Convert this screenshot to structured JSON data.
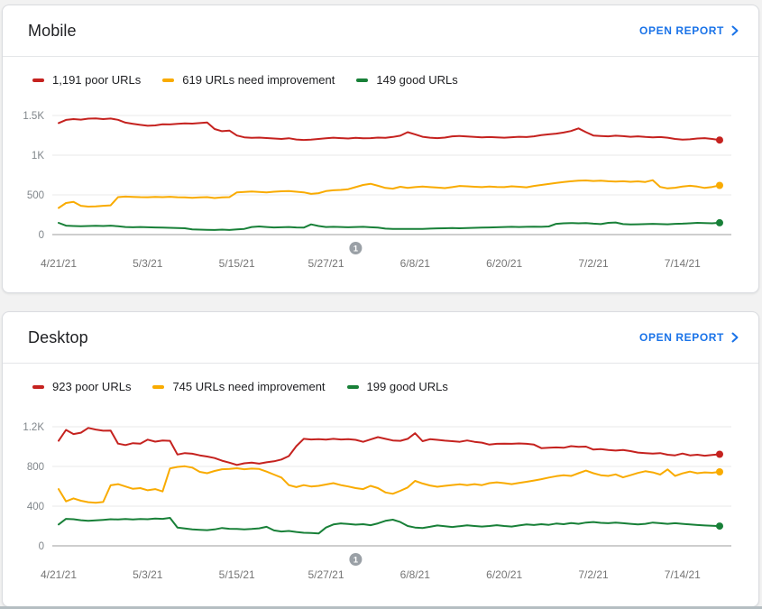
{
  "page": {
    "background": "#f2f2f2",
    "bottom_bar_color": "#b5bec2"
  },
  "colors": {
    "poor": "#c5221f",
    "needs_improvement": "#f9ab00",
    "good": "#188038",
    "link": "#1a73e8",
    "grid": "#e8e8e8",
    "axis_line": "#9e9e9e",
    "tick_label": "#80868b",
    "x_tick_label": "#757575",
    "badge": "#9aa0a6"
  },
  "cards": [
    {
      "title": "Mobile",
      "open_report_label": "OPEN REPORT",
      "legend": [
        {
          "series": "poor",
          "label": "1,191 poor URLs"
        },
        {
          "series": "needs_improvement",
          "label": "619 URLs need improvement"
        },
        {
          "series": "good",
          "label": "149 good URLs"
        }
      ],
      "chart_data": {
        "type": "line",
        "x_tick_labels": [
          "4/21/21",
          "5/3/21",
          "5/15/21",
          "5/27/21",
          "6/8/21",
          "6/20/21",
          "7/2/21",
          "7/14/21"
        ],
        "x_tick_positions": [
          0,
          12,
          24,
          36,
          48,
          60,
          72,
          84
        ],
        "x_range_days": 90,
        "y_ticks": [
          {
            "value": 1500,
            "label": "1.5K"
          },
          {
            "value": 1000,
            "label": "1K"
          },
          {
            "value": 500,
            "label": "500"
          },
          {
            "value": 0,
            "label": "0"
          }
        ],
        "y_unit_per_gridline": 500,
        "ylim": [
          0,
          1750
        ],
        "grid": true,
        "annotation": {
          "label": "1",
          "day": 40
        },
        "series": [
          {
            "name": "poor",
            "color": "#c5221f",
            "values": [
              1405,
              1444,
              1455,
              1448,
              1460,
              1463,
              1454,
              1461,
              1446,
              1410,
              1395,
              1382,
              1370,
              1375,
              1390,
              1388,
              1396,
              1400,
              1398,
              1405,
              1412,
              1330,
              1302,
              1310,
              1248,
              1225,
              1218,
              1222,
              1216,
              1210,
              1205,
              1214,
              1198,
              1192,
              1195,
              1205,
              1212,
              1220,
              1215,
              1210,
              1218,
              1212,
              1215,
              1222,
              1218,
              1230,
              1245,
              1290,
              1262,
              1232,
              1220,
              1215,
              1222,
              1238,
              1242,
              1236,
              1230,
              1224,
              1228,
              1224,
              1220,
              1226,
              1232,
              1228,
              1238,
              1252,
              1262,
              1272,
              1285,
              1305,
              1338,
              1290,
              1248,
              1242,
              1238,
              1246,
              1240,
              1232,
              1238,
              1230,
              1224,
              1228,
              1220,
              1205,
              1195,
              1200,
              1210,
              1215,
              1205,
              1191
            ]
          },
          {
            "name": "needs_improvement",
            "color": "#f9ab00",
            "values": [
              335,
              398,
              412,
              362,
              352,
              356,
              362,
              368,
              472,
              478,
              475,
              472,
              470,
              474,
              472,
              476,
              470,
              468,
              462,
              468,
              472,
              460,
              468,
              472,
              532,
              538,
              542,
              536,
              532,
              540,
              545,
              548,
              540,
              532,
              512,
              522,
              548,
              558,
              562,
              572,
              598,
              625,
              640,
              615,
              588,
              578,
              602,
              588,
              598,
              605,
              598,
              592,
              585,
              598,
              612,
              608,
              602,
              598,
              605,
              600,
              598,
              608,
              602,
              595,
              612,
              625,
              638,
              650,
              662,
              672,
              678,
              682,
              675,
              678,
              672,
              668,
              672,
              665,
              670,
              662,
              685,
              600,
              582,
              590,
              605,
              615,
              605,
              588,
              600,
              619
            ]
          },
          {
            "name": "good",
            "color": "#188038",
            "values": [
              148,
              112,
              108,
              105,
              108,
              110,
              108,
              112,
              105,
              95,
              92,
              95,
              92,
              90,
              88,
              85,
              82,
              80,
              65,
              62,
              60,
              58,
              62,
              58,
              65,
              72,
              95,
              102,
              95,
              90,
              92,
              95,
              90,
              88,
              128,
              108,
              95,
              98,
              95,
              92,
              95,
              98,
              92,
              88,
              75,
              72,
              70,
              72,
              70,
              72,
              75,
              78,
              80,
              82,
              80,
              82,
              85,
              88,
              90,
              92,
              95,
              98,
              95,
              98,
              100,
              98,
              102,
              135,
              142,
              145,
              142,
              145,
              138,
              132,
              148,
              152,
              132,
              128,
              130,
              132,
              135,
              132,
              130,
              135,
              138,
              142,
              148,
              145,
              142,
              149
            ]
          }
        ]
      }
    },
    {
      "title": "Desktop",
      "open_report_label": "OPEN REPORT",
      "legend": [
        {
          "series": "poor",
          "label": "923 poor URLs"
        },
        {
          "series": "needs_improvement",
          "label": "745 URLs need improvement"
        },
        {
          "series": "good",
          "label": "199 good URLs"
        }
      ],
      "chart_data": {
        "type": "line",
        "x_tick_labels": [
          "4/21/21",
          "5/3/21",
          "5/15/21",
          "5/27/21",
          "6/8/21",
          "6/20/21",
          "7/2/21",
          "7/14/21"
        ],
        "x_tick_positions": [
          0,
          12,
          24,
          36,
          48,
          60,
          72,
          84
        ],
        "x_range_days": 90,
        "y_ticks": [
          {
            "value": 1200,
            "label": "1.2K"
          },
          {
            "value": 800,
            "label": "800"
          },
          {
            "value": 400,
            "label": "400"
          },
          {
            "value": 0,
            "label": "0"
          }
        ],
        "y_unit_per_gridline": 400,
        "ylim": [
          0,
          1400
        ],
        "grid": true,
        "annotation": {
          "label": "1",
          "day": 40
        },
        "series": [
          {
            "name": "poor",
            "color": "#c5221f",
            "values": [
              1058,
              1168,
              1126,
              1140,
              1188,
              1172,
              1160,
              1162,
              1030,
              1015,
              1035,
              1030,
              1070,
              1050,
              1062,
              1058,
              920,
              935,
              928,
              912,
              900,
              885,
              858,
              838,
              815,
              832,
              838,
              828,
              842,
              852,
              870,
              905,
              1005,
              1078,
              1072,
              1075,
              1070,
              1078,
              1072,
              1075,
              1068,
              1048,
              1072,
              1095,
              1078,
              1062,
              1058,
              1078,
              1135,
              1055,
              1075,
              1068,
              1060,
              1055,
              1048,
              1062,
              1048,
              1040,
              1020,
              1028,
              1030,
              1028,
              1032,
              1028,
              1020,
              985,
              988,
              992,
              988,
              1005,
              998,
              1000,
              970,
              975,
              966,
              960,
              966,
              955,
              940,
              935,
              930,
              935,
              918,
              912,
              930,
              912,
              918,
              908,
              916,
              923
            ]
          },
          {
            "name": "needs_improvement",
            "color": "#f9ab00",
            "values": [
              572,
              448,
              478,
              455,
              440,
              435,
              442,
              610,
              622,
              598,
              575,
              582,
              560,
              572,
              548,
              780,
              795,
              802,
              788,
              745,
              732,
              755,
              772,
              775,
              782,
              772,
              778,
              775,
              748,
              718,
              688,
              612,
              592,
              612,
              598,
              605,
              618,
              632,
              612,
              598,
              582,
              572,
              605,
              582,
              538,
              525,
              555,
              588,
              655,
              628,
              608,
              595,
              605,
              613,
              620,
              612,
              622,
              612,
              632,
              640,
              632,
              622,
              634,
              645,
              658,
              672,
              688,
              702,
              712,
              705,
              732,
              758,
              732,
              712,
              705,
              720,
              690,
              712,
              735,
              752,
              740,
              718,
              770,
              705,
              730,
              748,
              732,
              740,
              736,
              745
            ]
          },
          {
            "name": "good",
            "color": "#188038",
            "values": [
              215,
              272,
              268,
              258,
              252,
              256,
              262,
              268,
              265,
              270,
              265,
              270,
              268,
              275,
              272,
              282,
              185,
              175,
              165,
              162,
              158,
              165,
              180,
              172,
              170,
              166,
              170,
              176,
              192,
              155,
              145,
              150,
              140,
              132,
              130,
              125,
              185,
              215,
              226,
              220,
              214,
              218,
              208,
              226,
              252,
              264,
              240,
              200,
              185,
              180,
              192,
              205,
              198,
              190,
              198,
              206,
              200,
              195,
              200,
              208,
              200,
              195,
              205,
              215,
              210,
              218,
              212,
              225,
              218,
              230,
              222,
              235,
              240,
              232,
              228,
              235,
              228,
              222,
              215,
              222,
              235,
              228,
              222,
              228,
              222,
              215,
              210,
              205,
              202,
              199
            ]
          }
        ]
      }
    }
  ]
}
